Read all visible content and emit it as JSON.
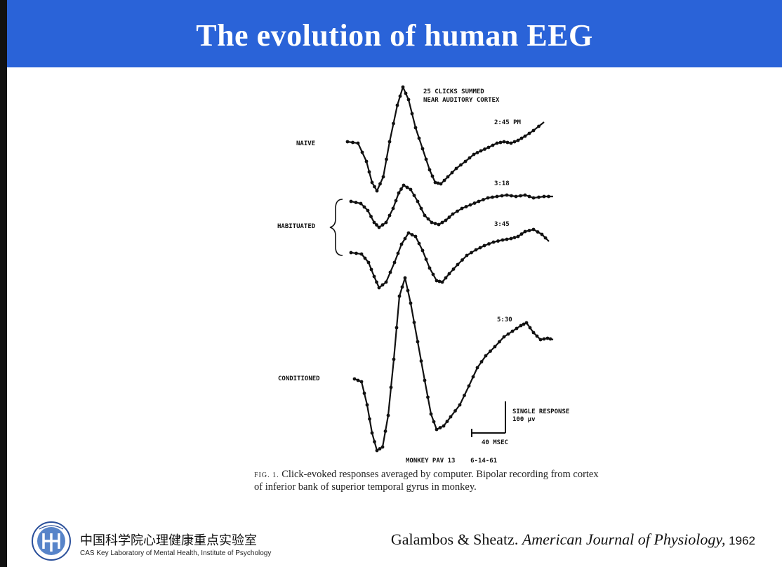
{
  "slide": {
    "title": "The evolution of human EEG"
  },
  "figure": {
    "top_label_1": "25 CLICKS SUMMED",
    "top_label_2": "NEAR AUDITORY CORTEX",
    "traces": [
      {
        "label": "NAIVE",
        "time": "2:45 PM"
      },
      {
        "label": "HABITUATED",
        "time": "3:18"
      },
      {
        "label": "",
        "time": "3:45"
      },
      {
        "label": "CONDITIONED",
        "time": "5:30"
      }
    ],
    "scale_vertical_1": "SINGLE RESPONSE",
    "scale_vertical_2": "100 μv",
    "scale_horizontal": "40 MSEC",
    "subject": "MONKEY PAV 13    6-14-61",
    "caption_prefix": "FIG. 1.",
    "caption_text": " Click-evoked responses averaged by computer. Bipolar recording from cortex of inferior bank of superior temporal gyrus in monkey."
  },
  "footer": {
    "institution_cn": "中国科学院心理健康重点实验室",
    "institution_en": "CAS Key Laboratory of Mental Health, Institute of Psychology",
    "logo_icon": "cas-psychology-logo-icon",
    "citation_authors": "Galambos & Sheatz. ",
    "citation_journal": "American Journal of Physiology,",
    "citation_year": " 1962"
  }
}
